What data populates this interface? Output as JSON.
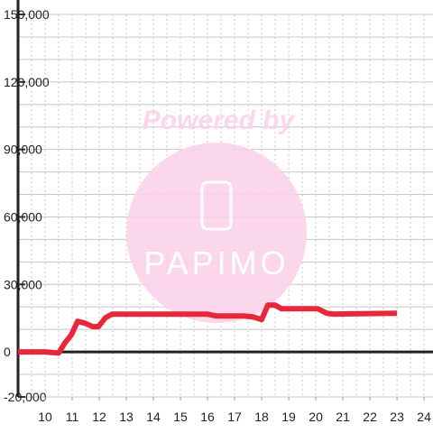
{
  "chart_data": {
    "type": "line",
    "x": [
      9,
      10,
      10.5,
      10.73,
      10.97,
      11.2,
      11.47,
      11.77,
      11.97,
      12.23,
      12.47,
      16.0,
      16.3,
      17.33,
      17.67,
      18.0,
      18.23,
      18.5,
      18.73,
      19.83,
      20.07,
      20.4,
      20.67,
      23.0
    ],
    "series": [
      {
        "color": "#e8283a",
        "values": [
          0,
          0,
          -500,
          4000,
          7600,
          13600,
          12800,
          11200,
          11200,
          15200,
          16800,
          16800,
          16000,
          16000,
          15600,
          14400,
          20800,
          20800,
          19200,
          19200,
          19200,
          17200,
          16800,
          17200
        ]
      }
    ],
    "xlim": [
      9,
      24.33
    ],
    "xticks": [
      10,
      11,
      12,
      13,
      14,
      15,
      16,
      17,
      18,
      19,
      20,
      21,
      22,
      23,
      24
    ],
    "ylim": [
      -20000,
      150000
    ],
    "yticks": [
      {
        "value": -20000,
        "label": "-20,000"
      },
      0,
      {
        "value": 30000,
        "label": "30,000"
      },
      {
        "value": 60000,
        "label": "60,000"
      },
      {
        "value": 90000,
        "label": "90,000"
      },
      {
        "value": 120000,
        "label": "120,000"
      },
      {
        "value": 150000,
        "label": "150,000"
      }
    ],
    "y_minor_step": 10000,
    "x_minor_step": 0.5,
    "grid": true,
    "watermark": {
      "top": "Powered by",
      "bottom": "PAPIMO"
    }
  }
}
